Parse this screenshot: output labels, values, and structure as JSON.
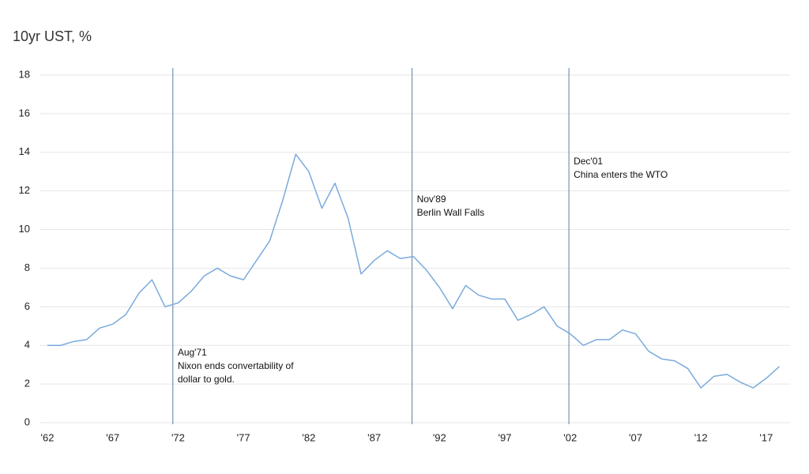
{
  "chart_data": {
    "type": "line",
    "title": "10yr UST, %",
    "x": [
      1962,
      1963,
      1964,
      1965,
      1966,
      1967,
      1968,
      1969,
      1970,
      1971,
      1972,
      1973,
      1974,
      1975,
      1976,
      1977,
      1978,
      1979,
      1980,
      1981,
      1982,
      1983,
      1984,
      1985,
      1986,
      1987,
      1988,
      1989,
      1990,
      1991,
      1992,
      1993,
      1994,
      1995,
      1996,
      1997,
      1998,
      1999,
      2000,
      2001,
      2002,
      2003,
      2004,
      2005,
      2006,
      2007,
      2008,
      2009,
      2010,
      2011,
      2012,
      2013,
      2014,
      2015,
      2016,
      2017,
      2018
    ],
    "series": [
      {
        "name": "10yr UST",
        "color": "#7aaadc",
        "values": [
          4.0,
          4.0,
          4.2,
          4.3,
          4.9,
          5.1,
          5.6,
          6.7,
          7.4,
          6.0,
          6.2,
          6.8,
          7.6,
          8.0,
          7.6,
          7.4,
          8.4,
          9.4,
          11.5,
          13.9,
          13.0,
          11.1,
          12.4,
          10.6,
          7.7,
          8.4,
          8.9,
          8.5,
          8.6,
          7.9,
          7.0,
          5.9,
          7.1,
          6.6,
          6.4,
          6.4,
          5.3,
          5.6,
          6.0,
          5.0,
          4.6,
          4.0,
          4.3,
          4.3,
          4.8,
          4.6,
          3.7,
          3.3,
          3.2,
          2.8,
          1.8,
          2.4,
          2.5,
          2.1,
          1.8,
          2.3,
          2.9
        ]
      }
    ],
    "xlim": [
      1962,
      2019
    ],
    "ylim": [
      0,
      18
    ],
    "yticks": [
      0,
      2,
      4,
      6,
      8,
      10,
      12,
      14,
      16,
      18
    ],
    "xticks": [
      {
        "value": 1962,
        "label": "'62"
      },
      {
        "value": 1967,
        "label": "'67"
      },
      {
        "value": 1972,
        "label": "'72"
      },
      {
        "value": 1977,
        "label": "'77"
      },
      {
        "value": 1982,
        "label": "'82"
      },
      {
        "value": 1987,
        "label": "'87"
      },
      {
        "value": 1992,
        "label": "'92"
      },
      {
        "value": 1997,
        "label": "'97"
      },
      {
        "value": 2002,
        "label": "'02"
      },
      {
        "value": 2007,
        "label": "'07"
      },
      {
        "value": 2012,
        "label": "'12"
      },
      {
        "value": 2017,
        "label": "'17"
      }
    ],
    "grid": true,
    "annotations": [
      {
        "x": 1971.6,
        "label": "Aug'71",
        "text": [
          "Nixon ends convertability of",
          "dollar to gold."
        ]
      },
      {
        "x": 1989.9,
        "label": "Nov'89",
        "text": [
          "Berlin Wall Falls"
        ]
      },
      {
        "x": 2001.9,
        "label": "Dec'01",
        "text": [
          "China enters the WTO"
        ]
      }
    ]
  }
}
